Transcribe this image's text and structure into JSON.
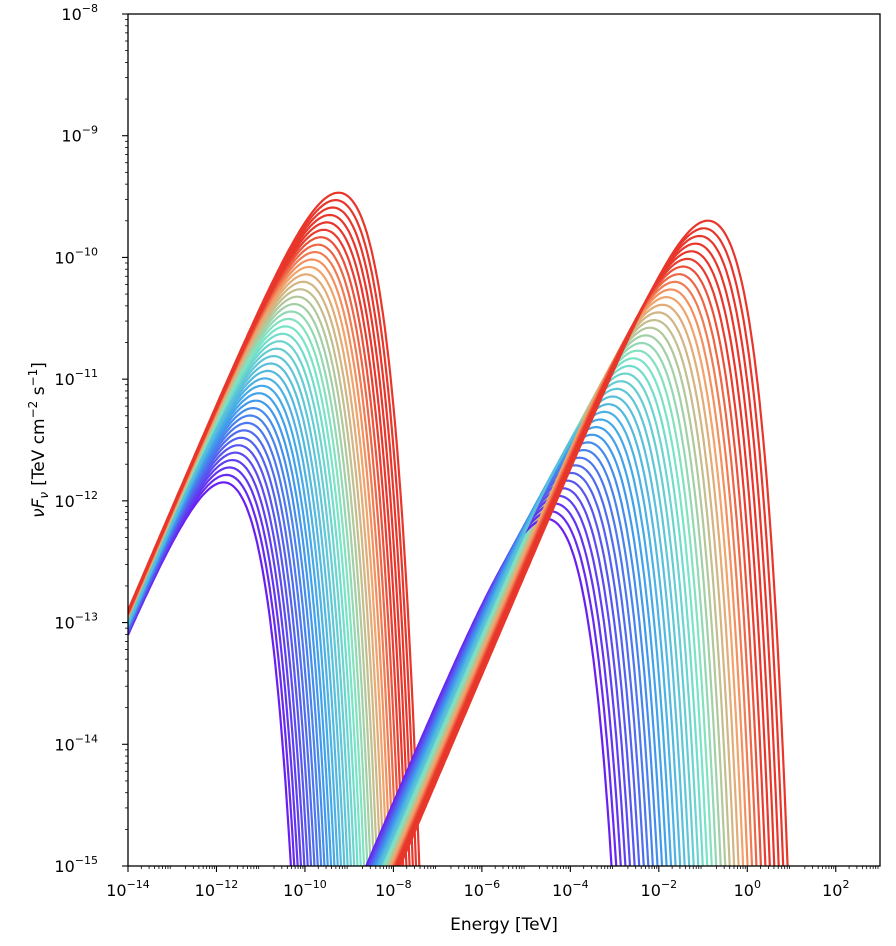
{
  "chart_data": {
    "type": "line",
    "xlabel": "Energy [TeV]",
    "ylabel_parts": {
      "nu": "ν",
      "F": "F",
      "sub": "ν",
      "bracket_open": "[TeV  cm",
      "exp1": "−2",
      "mid": "  s",
      "exp2": "−1",
      "bracket_close": "]"
    },
    "x_scale": "log",
    "y_scale": "log",
    "xlim": [
      1e-14,
      1000
    ],
    "ylim": [
      1e-15,
      1e-08
    ],
    "x_ticks": [
      {
        "exp": -14,
        "base": "10",
        "label": "−14"
      },
      {
        "exp": -12,
        "base": "10",
        "label": "−12"
      },
      {
        "exp": -10,
        "base": "10",
        "label": "−10"
      },
      {
        "exp": -8,
        "base": "10",
        "label": "−8"
      },
      {
        "exp": -6,
        "base": "10",
        "label": "−6"
      },
      {
        "exp": -4,
        "base": "10",
        "label": "−4"
      },
      {
        "exp": -2,
        "base": "10",
        "label": "−2"
      },
      {
        "exp": 0,
        "base": "10",
        "label": "0"
      },
      {
        "exp": 2,
        "base": "10",
        "label": "2"
      }
    ],
    "y_ticks": [
      {
        "exp": -15,
        "base": "10",
        "label": "−15"
      },
      {
        "exp": -14,
        "base": "10",
        "label": "−14"
      },
      {
        "exp": -13,
        "base": "10",
        "label": "−13"
      },
      {
        "exp": -12,
        "base": "10",
        "label": "−12"
      },
      {
        "exp": -11,
        "base": "10",
        "label": "−11"
      },
      {
        "exp": -10,
        "base": "10",
        "label": "−10"
      },
      {
        "exp": -9,
        "base": "10",
        "label": "−9"
      },
      {
        "exp": -8,
        "base": "10",
        "label": "−8"
      }
    ],
    "grid": false,
    "colormap": "rainbow",
    "n_curves": 40,
    "curve_families": [
      {
        "component": "synchrotron",
        "log_peak_energy_range": [
          -11.9,
          -9.3
        ],
        "log_peak_flux_range": [
          -11.85,
          -9.47
        ]
      },
      {
        "component": "inverse-compton",
        "log_peak_energy_range": [
          -4.6,
          -0.95
        ],
        "log_peak_flux_range": [
          -12.15,
          -9.7
        ]
      }
    ],
    "colors": {
      "low": "#6a1ff2",
      "mid": "#3ea0ec",
      "cyan": "#7be6c4",
      "orange": "#f4a168",
      "high": "#e8362b"
    }
  }
}
